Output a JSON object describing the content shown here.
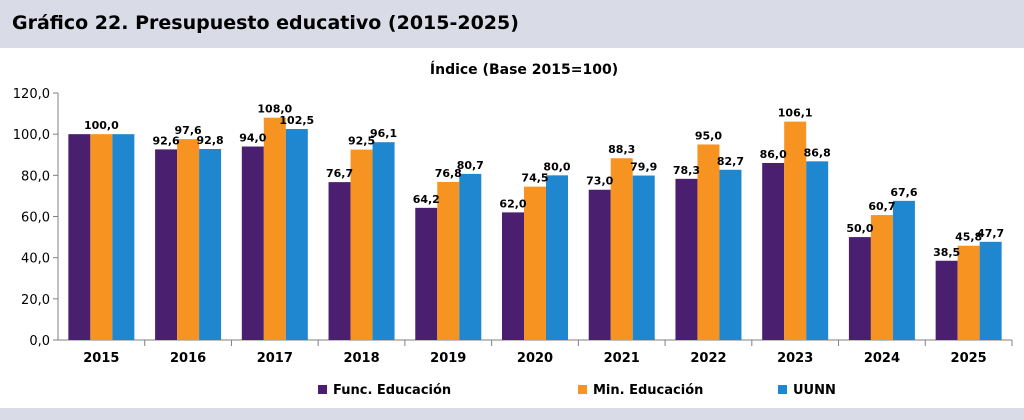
{
  "header": {
    "title": "Gráfico 22. Presupuesto educativo (2015-2025)"
  },
  "chart_data": {
    "type": "bar",
    "title": "Índice (Base 2015=100)",
    "xlabel": "",
    "ylabel": "",
    "ylim": [
      0,
      120
    ],
    "yticks": [
      "0,0",
      "20,0",
      "40,0",
      "60,0",
      "80,0",
      "100,0",
      "120,0"
    ],
    "grid": false,
    "legend_position": "bottom",
    "categories": [
      "2015",
      "2016",
      "2017",
      "2018",
      "2019",
      "2020",
      "2021",
      "2022",
      "2023",
      "2024",
      "2025"
    ],
    "series": [
      {
        "name": "Func. Educación",
        "color": "#4b1f6f",
        "values": [
          100.0,
          92.6,
          94.0,
          76.7,
          64.2,
          62.0,
          73.0,
          78.3,
          86.0,
          50.0,
          38.5
        ],
        "labels": [
          "",
          "92,6",
          "94,0",
          "76,7",
          "64,2",
          "62,0",
          "73,0",
          "78,3",
          "86,0",
          "50,0",
          "38,5"
        ]
      },
      {
        "name": "Min. Educación",
        "color": "#f79421",
        "values": [
          100.0,
          97.6,
          108.0,
          92.5,
          76.8,
          74.5,
          88.3,
          95.0,
          106.1,
          60.7,
          45.8
        ],
        "labels": [
          "100,0",
          "97,6",
          "108,0",
          "92,5",
          "76,8",
          "74,5",
          "88,3",
          "95,0",
          "106,1",
          "60,7",
          "45,8"
        ]
      },
      {
        "name": "UUNN",
        "color": "#1f87cf",
        "values": [
          100.0,
          92.8,
          102.5,
          96.1,
          80.7,
          80.0,
          79.9,
          82.7,
          86.8,
          67.6,
          47.7
        ],
        "labels": [
          "",
          "92,8",
          "102,5",
          "96,1",
          "80,7",
          "80,0",
          "79,9",
          "82,7",
          "86,8",
          "67,6",
          "47,7"
        ]
      }
    ]
  }
}
